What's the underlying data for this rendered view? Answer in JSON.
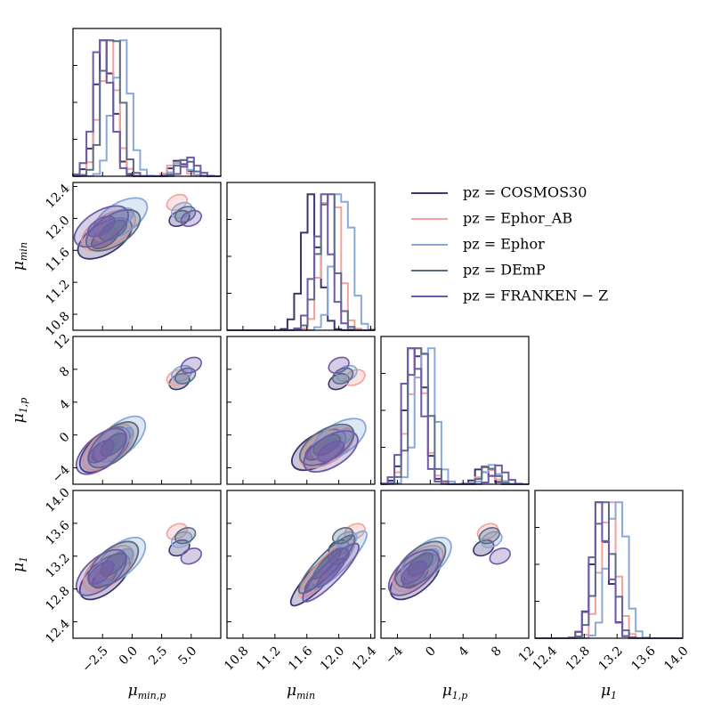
{
  "chart_data": {
    "type": "corner",
    "parameters": [
      {
        "id": "mu_min_p",
        "symbol": "μ",
        "subscript": "min,p",
        "range": [
          -5,
          7.5
        ],
        "ticks": [
          -2.5,
          0.0,
          2.5,
          5.0
        ],
        "tick_labels": [
          "−2.5",
          "0.0",
          "2.5",
          "5.0"
        ]
      },
      {
        "id": "mu_min",
        "symbol": "μ",
        "subscript": "min",
        "range": [
          10.6,
          12.45
        ],
        "ticks": [
          10.8,
          11.2,
          11.6,
          12.0,
          12.4
        ],
        "tick_labels": [
          "10.8",
          "11.2",
          "11.6",
          "12.0",
          "12.4"
        ]
      },
      {
        "id": "mu_1_p",
        "symbol": "μ",
        "subscript": "1,p",
        "range": [
          -6,
          12
        ],
        "ticks": [
          -4,
          0,
          4,
          8,
          12
        ],
        "tick_labels": [
          "−4",
          "0",
          "4",
          "8",
          "12"
        ]
      },
      {
        "id": "mu_1",
        "symbol": "μ",
        "subscript": "1",
        "range": [
          12.2,
          14.0
        ],
        "ticks": [
          12.4,
          12.8,
          13.2,
          13.6,
          14.0
        ],
        "tick_labels": [
          "12.4",
          "12.8",
          "13.2",
          "13.6",
          "14.0"
        ]
      }
    ],
    "series": [
      {
        "name": "pz = COSMOS30",
        "color": "#3d3470",
        "mean": [
          -2.3,
          11.75,
          -1.8,
          12.95
        ],
        "hist_centers": [
          -2.3,
          11.65,
          -1.8,
          13.0
        ],
        "secondary_mode": [
          4.0,
          12.0,
          6.5,
          13.3
        ]
      },
      {
        "name": "pz = Ephor_AB",
        "color": "#f2a29c",
        "mean": [
          -2.0,
          11.85,
          -1.5,
          13.05
        ],
        "hist_centers": [
          -2.0,
          11.9,
          -1.6,
          13.1
        ],
        "secondary_mode": [
          3.8,
          12.2,
          7.0,
          13.5
        ]
      },
      {
        "name": "pz = Ephor",
        "color": "#8aa8d8",
        "mean": [
          -1.0,
          12.0,
          -0.5,
          13.15
        ],
        "hist_centers": [
          -0.9,
          12.05,
          -0.5,
          13.2
        ],
        "secondary_mode": [
          4.2,
          12.1,
          7.5,
          13.4
        ]
      },
      {
        "name": "pz = DEmP",
        "color": "#5a6c86",
        "mean": [
          -1.6,
          11.85,
          -1.2,
          13.1
        ],
        "hist_centers": [
          -1.7,
          11.85,
          -1.3,
          13.05
        ],
        "secondary_mode": [
          4.5,
          12.05,
          7.2,
          13.45
        ]
      },
      {
        "name": "pz = FRANKEN − Z",
        "color": "#6f5aa8",
        "mean": [
          -2.6,
          11.9,
          -2.0,
          13.0
        ],
        "hist_centers": [
          -2.5,
          11.8,
          -2.1,
          13.0
        ],
        "secondary_mode": [
          5.0,
          12.0,
          8.5,
          13.2
        ]
      }
    ],
    "legend_location": "upper-right"
  }
}
